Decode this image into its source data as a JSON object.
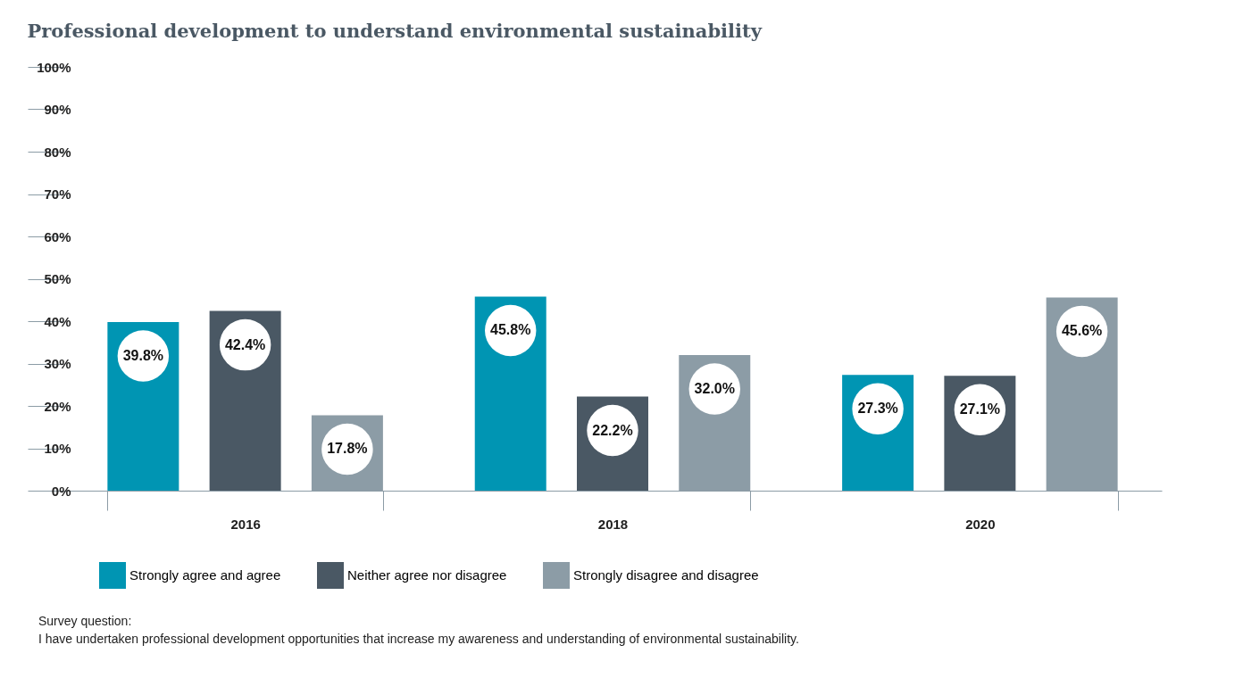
{
  "chart_data": {
    "type": "bar",
    "title": "Professional development to understand environmental sustainability",
    "categories": [
      "2016",
      "2018",
      "2020"
    ],
    "series": [
      {
        "name": "Strongly agree and agree",
        "color": "#0095b3",
        "values": [
          39.8,
          45.8,
          27.3
        ]
      },
      {
        "name": "Neither agree nor disagree",
        "color": "#4a5864",
        "values": [
          42.4,
          22.2,
          27.1
        ]
      },
      {
        "name": "Strongly disagree and disagree",
        "color": "#8c9ca6",
        "values": [
          17.8,
          32.0,
          45.6
        ]
      }
    ],
    "value_labels": [
      [
        "39.8%",
        "45.8%",
        "27.3%"
      ],
      [
        "42.4%",
        "22.2%",
        "27.1%"
      ],
      [
        "17.8%",
        "32.0%",
        "45.6%"
      ]
    ],
    "ylim": [
      0,
      100
    ],
    "yticks": [
      {
        "value": 0,
        "label": "0%"
      },
      {
        "value": 10,
        "label": "10%"
      },
      {
        "value": 20,
        "label": "20%"
      },
      {
        "value": 30,
        "label": "30%"
      },
      {
        "value": 40,
        "label": "40%"
      },
      {
        "value": 50,
        "label": "50%"
      },
      {
        "value": 60,
        "label": "60%"
      },
      {
        "value": 70,
        "label": "70%"
      },
      {
        "value": 80,
        "label": "80%"
      },
      {
        "value": 90,
        "label": "90%"
      },
      {
        "value": 100,
        "label": "100%"
      }
    ],
    "grid": false,
    "legend": "bottom",
    "annotations": [
      "Survey question:",
      "I have undertaken professional development opportunities that increase my awareness and understanding of environmental sustainability."
    ]
  }
}
